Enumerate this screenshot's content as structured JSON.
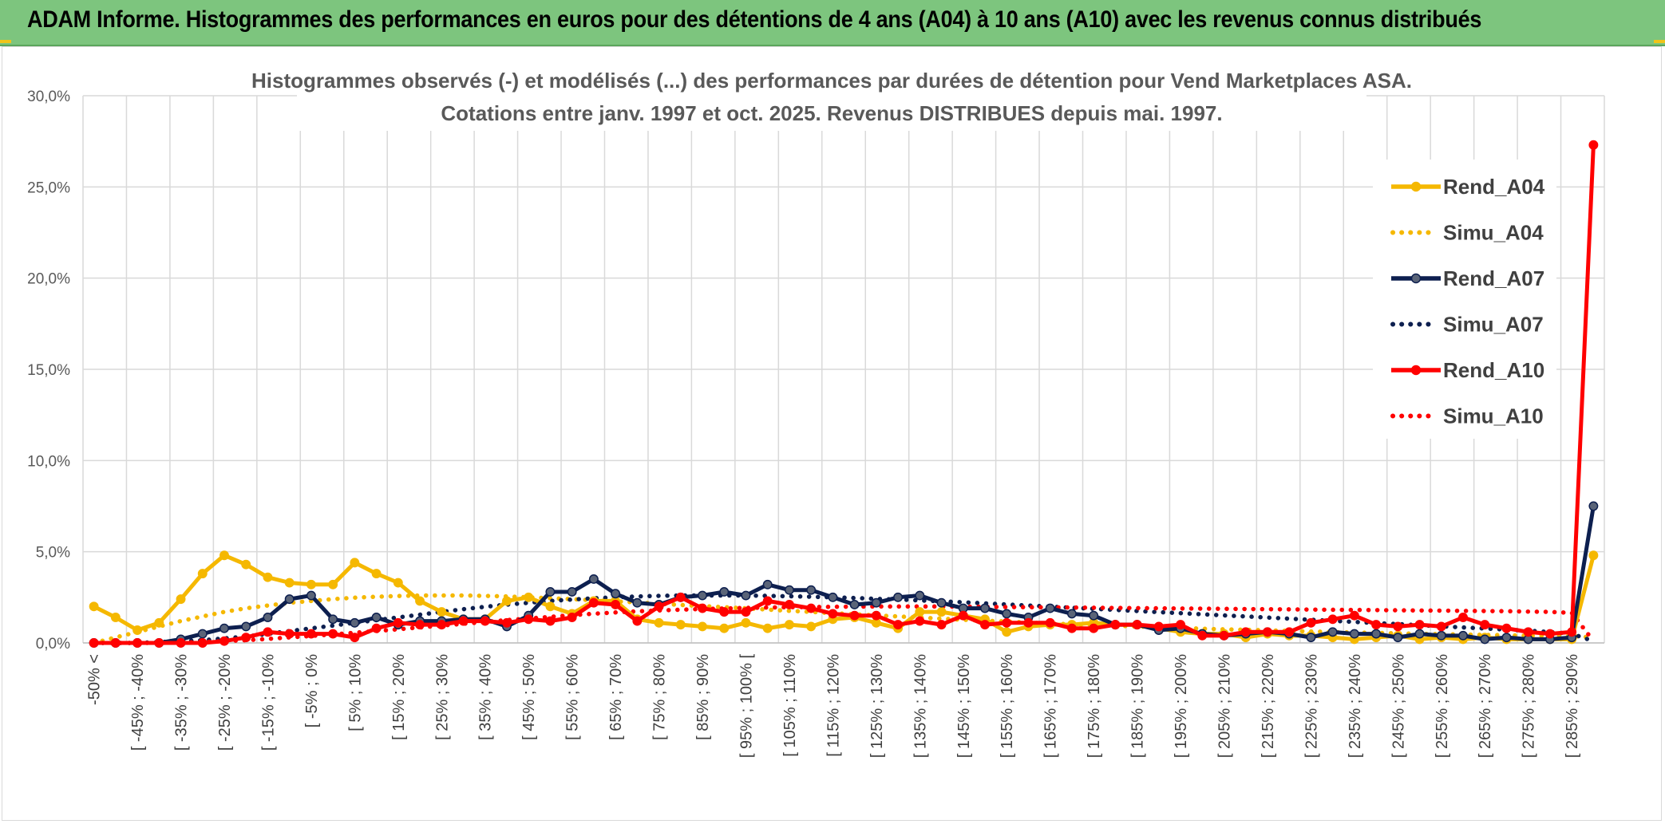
{
  "banner": {
    "title": "ADAM Informe. Histogrammes des performances en euros pour des détentions de 4 ans (A04) à 10 ans (A10) avec les revenus connus distribués"
  },
  "chart_data": {
    "type": "line",
    "title_line1": "Histogrammes observés (-) et modélisés (...) des performances par durées de détention pour Vend Marketplaces ASA.",
    "title_line2": "Cotations entre janv. 1997 et oct. 2025. Revenus DISTRIBUES depuis mai. 1997.",
    "ylim": [
      0,
      30
    ],
    "yticks": [
      "0,0%",
      "5,0%",
      "10,0%",
      "15,0%",
      "20,0%",
      "25,0%",
      "30,0%"
    ],
    "ytick_values": [
      0,
      5,
      10,
      15,
      20,
      25,
      30
    ],
    "x_labels": [
      "-50% <",
      "[ -45% ; -40%",
      "[ -35% ; -30%",
      "[ -25% ; -20%",
      "[ -15% ; -10%",
      "[ -5% ; 0%",
      "[ 5% ; 10%",
      "[ 15% ; 20%",
      "[ 25% ; 30%",
      "[ 35% ; 40%",
      "[ 45% ; 50%",
      "[ 55% ; 60%",
      "[ 65% ; 70%",
      "[ 75% ; 80%",
      "[ 85% ; 90%",
      "[ 95% ; 100% [",
      "[ 105% ; 110%",
      "[ 115% ; 120%",
      "[ 125% ; 130%",
      "[ 135% ; 140%",
      "[ 145% ; 150%",
      "[ 155% ; 160%",
      "[ 165% ; 170%",
      "[ 175% ; 180%",
      "[ 185% ; 190%",
      "[ 195% ; 200%",
      "[ 205% ; 210%",
      "[ 215% ; 220%",
      "[ 225% ; 230%",
      "[ 235% ; 240%",
      "[ 245% ; 250%",
      "[ 255% ; 260%",
      "[ 265% ; 270%",
      "[ 275% ; 280%",
      "[ 285% ; 290%"
    ],
    "n_points": 70,
    "legend_position": "right",
    "series": [
      {
        "name": "Rend_A04",
        "style": "solid",
        "color": "#f5b800",
        "values": [
          2.0,
          1.4,
          0.7,
          1.1,
          2.4,
          3.8,
          4.8,
          4.3,
          3.6,
          3.3,
          3.2,
          3.2,
          4.4,
          3.8,
          3.3,
          2.3,
          1.7,
          1.3,
          1.3,
          2.3,
          2.5,
          2.0,
          1.6,
          2.3,
          2.3,
          1.3,
          1.1,
          1.0,
          0.9,
          0.8,
          1.1,
          0.8,
          1.0,
          0.9,
          1.3,
          1.4,
          1.1,
          0.8,
          1.7,
          1.7,
          1.5,
          1.3,
          0.6,
          0.9,
          1.0,
          1.0,
          1.1,
          1.0,
          1.0,
          0.8,
          0.6,
          0.5,
          0.5,
          0.3,
          0.5,
          0.4,
          0.4,
          0.3,
          0.2,
          0.3,
          0.4,
          0.2,
          0.3,
          0.2,
          0.3,
          0.2,
          0.2,
          0.2,
          0.2,
          4.8
        ]
      },
      {
        "name": "Simu_A04",
        "style": "dotted",
        "color": "#f5b800",
        "values": [
          0.0,
          0.3,
          0.6,
          0.9,
          1.2,
          1.45,
          1.7,
          1.9,
          2.05,
          2.2,
          2.3,
          2.4,
          2.48,
          2.53,
          2.57,
          2.6,
          2.6,
          2.6,
          2.58,
          2.55,
          2.5,
          2.45,
          2.4,
          2.34,
          2.28,
          2.22,
          2.15,
          2.08,
          2.02,
          1.96,
          1.9,
          1.83,
          1.76,
          1.7,
          1.63,
          1.57,
          1.51,
          1.45,
          1.39,
          1.33,
          1.27,
          1.22,
          1.17,
          1.12,
          1.07,
          1.02,
          0.98,
          0.94,
          0.9,
          0.86,
          0.82,
          0.78,
          0.75,
          0.72,
          0.69,
          0.66,
          0.63,
          0.6,
          0.57,
          0.55,
          0.53,
          0.5,
          0.48,
          0.46,
          0.44,
          0.42,
          0.4,
          0.38,
          0.37,
          0.3
        ]
      },
      {
        "name": "Rend_A07",
        "style": "solid",
        "color": "#0d1f4f",
        "values": [
          0.0,
          0.0,
          0.0,
          0.0,
          0.2,
          0.5,
          0.8,
          0.9,
          1.4,
          2.4,
          2.6,
          1.3,
          1.1,
          1.4,
          1.0,
          1.2,
          1.2,
          1.3,
          1.3,
          0.9,
          1.5,
          2.8,
          2.8,
          3.5,
          2.7,
          2.2,
          2.1,
          2.5,
          2.6,
          2.8,
          2.6,
          3.2,
          2.9,
          2.9,
          2.5,
          2.1,
          2.2,
          2.5,
          2.6,
          2.2,
          1.9,
          1.9,
          1.6,
          1.4,
          1.9,
          1.6,
          1.5,
          1.0,
          1.0,
          0.7,
          0.8,
          0.5,
          0.4,
          0.5,
          0.6,
          0.5,
          0.3,
          0.6,
          0.5,
          0.5,
          0.3,
          0.5,
          0.4,
          0.4,
          0.2,
          0.3,
          0.2,
          0.2,
          0.3,
          7.5
        ]
      },
      {
        "name": "Simu_A07",
        "style": "dotted",
        "color": "#0d1f4f",
        "values": [
          0.0,
          0.0,
          0.0,
          0.05,
          0.1,
          0.15,
          0.25,
          0.35,
          0.5,
          0.65,
          0.8,
          0.95,
          1.1,
          1.25,
          1.4,
          1.55,
          1.7,
          1.85,
          1.98,
          2.1,
          2.2,
          2.3,
          2.38,
          2.45,
          2.5,
          2.55,
          2.58,
          2.6,
          2.6,
          2.6,
          2.6,
          2.58,
          2.56,
          2.53,
          2.5,
          2.46,
          2.42,
          2.38,
          2.33,
          2.28,
          2.23,
          2.17,
          2.11,
          2.05,
          1.99,
          1.93,
          1.87,
          1.81,
          1.75,
          1.69,
          1.63,
          1.57,
          1.51,
          1.45,
          1.39,
          1.33,
          1.27,
          1.21,
          1.15,
          1.09,
          1.03,
          0.97,
          0.91,
          0.85,
          0.79,
          0.73,
          0.67,
          0.6,
          0.5,
          0.1
        ]
      },
      {
        "name": "Rend_A10",
        "style": "solid",
        "color": "#ff0000",
        "values": [
          0.0,
          0.0,
          0.0,
          0.0,
          0.0,
          0.0,
          0.1,
          0.3,
          0.6,
          0.5,
          0.5,
          0.5,
          0.3,
          0.8,
          1.1,
          1.0,
          1.0,
          1.2,
          1.2,
          1.1,
          1.3,
          1.2,
          1.4,
          2.2,
          2.1,
          1.2,
          2.0,
          2.5,
          1.9,
          1.7,
          1.7,
          2.3,
          2.1,
          1.9,
          1.6,
          1.5,
          1.5,
          1.0,
          1.2,
          1.0,
          1.5,
          1.0,
          1.1,
          1.1,
          1.1,
          0.8,
          0.8,
          1.0,
          1.0,
          0.9,
          1.0,
          0.4,
          0.4,
          0.6,
          0.6,
          0.6,
          1.1,
          1.3,
          1.5,
          1.0,
          0.9,
          1.0,
          0.9,
          1.4,
          1.0,
          0.8,
          0.6,
          0.5,
          0.6,
          27.3
        ]
      },
      {
        "name": "Simu_A10",
        "style": "dotted",
        "color": "#ff0000",
        "values": [
          0.0,
          0.0,
          0.0,
          0.0,
          0.02,
          0.05,
          0.1,
          0.15,
          0.22,
          0.3,
          0.38,
          0.47,
          0.56,
          0.65,
          0.75,
          0.85,
          0.95,
          1.05,
          1.15,
          1.25,
          1.34,
          1.43,
          1.52,
          1.6,
          1.67,
          1.73,
          1.78,
          1.82,
          1.86,
          1.89,
          1.92,
          1.94,
          1.96,
          1.97,
          1.98,
          1.99,
          2.0,
          2.0,
          2.0,
          2.0,
          1.99,
          1.98,
          1.97,
          1.96,
          1.95,
          1.94,
          1.93,
          1.92,
          1.91,
          1.9,
          1.89,
          1.88,
          1.87,
          1.86,
          1.85,
          1.84,
          1.83,
          1.82,
          1.81,
          1.8,
          1.79,
          1.78,
          1.77,
          1.76,
          1.75,
          1.74,
          1.72,
          1.7,
          1.65,
          0.1
        ]
      }
    ]
  }
}
